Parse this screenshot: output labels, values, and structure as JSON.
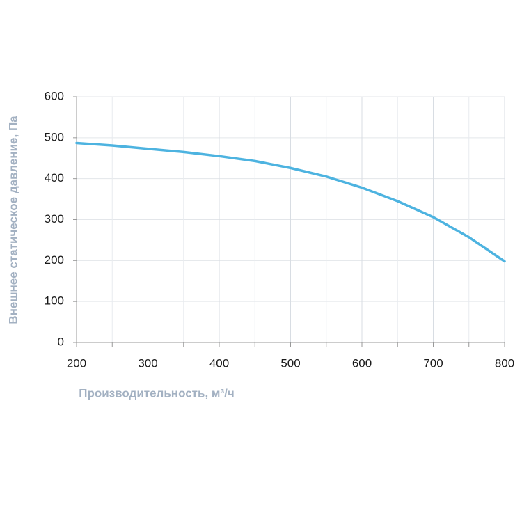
{
  "chart_data": {
    "type": "line",
    "x_label": "Производительность, м³/ч",
    "y_label": "Внешнее статическое давление, Па",
    "x": [
      200,
      250,
      300,
      350,
      400,
      450,
      500,
      550,
      600,
      650,
      700,
      750,
      800
    ],
    "series": [
      {
        "name": "Внешнее статическое давление",
        "color": "#4db3e0",
        "values": [
          487,
          481,
          473,
          465,
          455,
          443,
          426,
          405,
          378,
          345,
          306,
          257,
          198
        ]
      }
    ],
    "xlim": [
      200,
      800
    ],
    "xticks": [
      200,
      300,
      400,
      500,
      600,
      700,
      800
    ],
    "x_minor_ticks": [
      250,
      350,
      450,
      550,
      650,
      750
    ],
    "ylim": [
      0,
      600
    ],
    "yticks": [
      0,
      100,
      200,
      300,
      400,
      500,
      600
    ],
    "grid": true
  }
}
